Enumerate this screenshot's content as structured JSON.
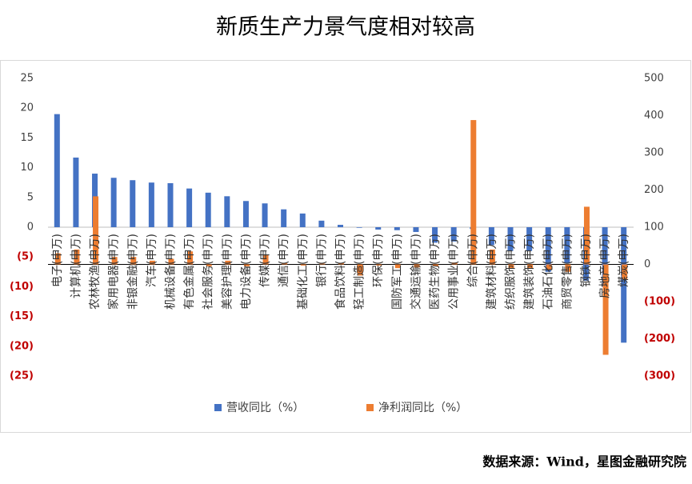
{
  "chart_data": {
    "type": "bar",
    "title": "新质生产力景气度相对较高",
    "source": "数据来源：Wind，星图金融研究院",
    "categories": [
      "电子(申万)",
      "计算机(申万)",
      "农林牧渔(申万)",
      "家用电器(申万)",
      "非银金融(申万)",
      "汽车(申万)",
      "机械设备(申万)",
      "有色金属(申万)",
      "社会服务(申万)",
      "美容护理(申万)",
      "电力设备(申万)",
      "传媒(申万)",
      "通信(申万)",
      "基础化工(申万)",
      "银行(申万)",
      "食品饮料(申万)",
      "轻工制造(申万)",
      "环保(申万)",
      "国防军工(申万)",
      "交通运输(申万)",
      "医药生物(申万)",
      "公用事业(申万)",
      "综合(申万)",
      "建筑材料(申万)",
      "纺织服饰(申万)",
      "建筑装饰(申万)",
      "石油石化(申万)",
      "商贸零售(申万)",
      "钢铁(申万)",
      "房地产(申万)",
      "煤炭(申万)"
    ],
    "series": [
      {
        "name": "营收同比（%）",
        "color": "#4472c4",
        "axis": "y",
        "values": [
          19.0,
          11.7,
          9.0,
          8.3,
          7.9,
          7.5,
          7.4,
          6.5,
          5.8,
          5.2,
          4.4,
          4.0,
          3.0,
          2.3,
          1.1,
          0.4,
          -0.1,
          -0.4,
          -0.5,
          -0.8,
          -2.6,
          -2.4,
          -0.3,
          -3.0,
          -4.0,
          -4.0,
          -7.5,
          -6.0,
          -9.0,
          -10.0,
          -19.4
        ]
      },
      {
        "name": "净利润同比（%）",
        "color": "#ed7d31",
        "axis": "y2",
        "values": [
          30,
          40,
          183,
          20,
          20,
          10,
          15,
          35,
          -5,
          10,
          -5,
          25,
          3,
          -3,
          2,
          3,
          -30,
          -3,
          -10,
          -8,
          -5,
          5,
          388,
          40,
          -10,
          -10,
          -15,
          -20,
          155,
          -243,
          -40
        ]
      }
    ],
    "ylim": [
      -25,
      25
    ],
    "yticks": [
      {
        "value": -25,
        "label": "(25)"
      },
      {
        "value": -20,
        "label": "(20)"
      },
      {
        "value": -15,
        "label": "(15)"
      },
      {
        "value": -10,
        "label": "(10)"
      },
      {
        "value": -5,
        "label": "(5)"
      },
      0,
      5,
      10,
      15,
      20,
      25
    ],
    "y2lim": [
      -300,
      500
    ],
    "y2ticks": [
      {
        "value": -300,
        "label": "(300)"
      },
      {
        "value": -200,
        "label": "(200)"
      },
      {
        "value": -100,
        "label": "(100)"
      },
      0,
      100,
      200,
      300,
      400,
      500
    ],
    "negative_label_color": "#c00000",
    "legend": "bottom"
  }
}
